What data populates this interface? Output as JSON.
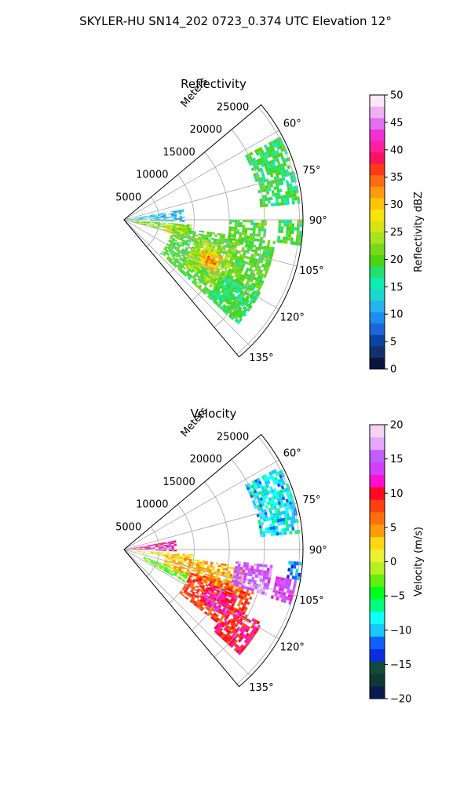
{
  "figure_title": "SKYLER-HU  SN14_202  0723_0.374 UTC Elevation 12°",
  "colors": {
    "reflectivity_scale": [
      "#0a1540",
      "#12306e",
      "#0b45a0",
      "#1b66d8",
      "#1e8cf0",
      "#26b4f0",
      "#1ad8d0",
      "#10ecb0",
      "#22e070",
      "#4cd412",
      "#78d81a",
      "#a8e41e",
      "#d6e414",
      "#f8e40a",
      "#ffc20a",
      "#ff9a10",
      "#ff6a16",
      "#ff3a18",
      "#ff1060",
      "#ff20a0",
      "#f030d6",
      "#e070f0",
      "#f0b0f4",
      "#fbe8fb"
    ],
    "velocity_scale": [
      "#0a1a50",
      "#0c3a32",
      "#124a3c",
      "#0c2ce0",
      "#1060ff",
      "#18c8ff",
      "#10ffff",
      "#00ff7a",
      "#00ff20",
      "#66ee10",
      "#b6f020",
      "#eef032",
      "#ffd812",
      "#ff9c0c",
      "#ff700c",
      "#ff4010",
      "#ff0a20",
      "#ff10d0",
      "#d240ff",
      "#c060ff",
      "#e6a8ff",
      "#f6d2f6"
    ]
  },
  "chart_data": [
    {
      "type": "heatmap",
      "projection": "polar-sector",
      "title": "Reflectivity",
      "r_axis_label": "Meters",
      "r_ticks": [
        5000,
        10000,
        15000,
        20000,
        25000
      ],
      "r_tick_labels": [
        "5000",
        "10000",
        "15000",
        "20000",
        "25000"
      ],
      "rlim": [
        0,
        25500
      ],
      "theta_ticks": [
        60,
        75,
        90,
        105,
        120,
        135
      ],
      "theta_tick_labels": [
        "60°",
        "75°",
        "90°",
        "105°",
        "120°",
        "135°"
      ],
      "theta_range_deg": [
        50,
        140
      ],
      "grid": true,
      "colorbar": {
        "label": "Reflectivity dBZ",
        "vmin": 0,
        "vmax": 50,
        "ticks": [
          0,
          5,
          10,
          15,
          20,
          25,
          30,
          35,
          40,
          45,
          50
        ],
        "tick_labels": [
          "0",
          "5",
          "10",
          "15",
          "20",
          "25",
          "30",
          "35",
          "40",
          "45",
          "50"
        ]
      },
      "echo_regions": [
        {
          "theta_deg": [
            62,
            84
          ],
          "r_m": [
            19500,
            25200
          ],
          "value": 18
        },
        {
          "theta_deg": [
            90,
            98
          ],
          "r_m": [
            22000,
            25200
          ],
          "value": 19
        },
        {
          "theta_deg": [
            80,
            92
          ],
          "r_m": [
            300,
            8500
          ],
          "value": 12
        },
        {
          "theta_deg": [
            94,
            104
          ],
          "r_m": [
            1000,
            9500
          ],
          "value": 22
        },
        {
          "theta_deg": [
            96,
            106
          ],
          "r_m": [
            6000,
            9000
          ],
          "value": 27
        },
        {
          "theta_deg": [
            98,
            132
          ],
          "r_m": [
            7000,
            21500
          ],
          "value": 20
        },
        {
          "theta_deg": [
            104,
            126
          ],
          "r_m": [
            10500,
            16500
          ],
          "value": 24
        },
        {
          "theta_deg": [
            110,
            120
          ],
          "r_m": [
            12000,
            15000
          ],
          "value": 30
        },
        {
          "theta_deg": [
            113,
            117
          ],
          "r_m": [
            13000,
            14200
          ],
          "value": 35
        },
        {
          "theta_deg": [
            90,
            102
          ],
          "r_m": [
            15000,
            20000
          ],
          "value": 20
        },
        {
          "theta_deg": [
            118,
            132
          ],
          "r_m": [
            16000,
            22000
          ],
          "value": 18
        }
      ]
    },
    {
      "type": "heatmap",
      "projection": "polar-sector",
      "title": "Velocity",
      "r_axis_label": "Meters",
      "r_ticks": [
        5000,
        10000,
        15000,
        20000,
        25000
      ],
      "r_tick_labels": [
        "5000",
        "10000",
        "15000",
        "20000",
        "25000"
      ],
      "rlim": [
        0,
        25500
      ],
      "theta_ticks": [
        60,
        75,
        90,
        105,
        120,
        135
      ],
      "theta_tick_labels": [
        "60°",
        "75°",
        "90°",
        "105°",
        "120°",
        "135°"
      ],
      "theta_range_deg": [
        50,
        140
      ],
      "grid": true,
      "colorbar": {
        "label": "Velocity (m/s)",
        "vmin": -20,
        "vmax": 20,
        "ticks": [
          -20,
          -15,
          -10,
          -5,
          0,
          5,
          10,
          15,
          20
        ],
        "tick_labels": [
          "−20",
          "−15",
          "−10",
          "−5",
          "0",
          "5",
          "10",
          "15",
          "20"
        ]
      },
      "echo_regions": [
        {
          "theta_deg": [
            62,
            84
          ],
          "r_m": [
            19500,
            25200
          ],
          "value": -9
        },
        {
          "theta_deg": [
            94,
            100
          ],
          "r_m": [
            23500,
            25200
          ],
          "value": -11
        },
        {
          "theta_deg": [
            80,
            92
          ],
          "r_m": [
            300,
            7500
          ],
          "value": 12
        },
        {
          "theta_deg": [
            94,
            100
          ],
          "r_m": [
            1500,
            9500
          ],
          "value": 2
        },
        {
          "theta_deg": [
            110,
            118
          ],
          "r_m": [
            3000,
            9500
          ],
          "value": -3
        },
        {
          "theta_deg": [
            98,
            112
          ],
          "r_m": [
            6000,
            17500
          ],
          "value": 4
        },
        {
          "theta_deg": [
            108,
            128
          ],
          "r_m": [
            10000,
            19500
          ],
          "value": 8
        },
        {
          "theta_deg": [
            112,
            124
          ],
          "r_m": [
            13000,
            17500
          ],
          "value": 11
        },
        {
          "theta_deg": [
            96,
            108
          ],
          "r_m": [
            16000,
            21000
          ],
          "value": 15
        },
        {
          "theta_deg": [
            118,
            132
          ],
          "r_m": [
            17000,
            22000
          ],
          "value": 10
        },
        {
          "theta_deg": [
            100,
            108
          ],
          "r_m": [
            22000,
            25000
          ],
          "value": 14
        }
      ]
    }
  ]
}
